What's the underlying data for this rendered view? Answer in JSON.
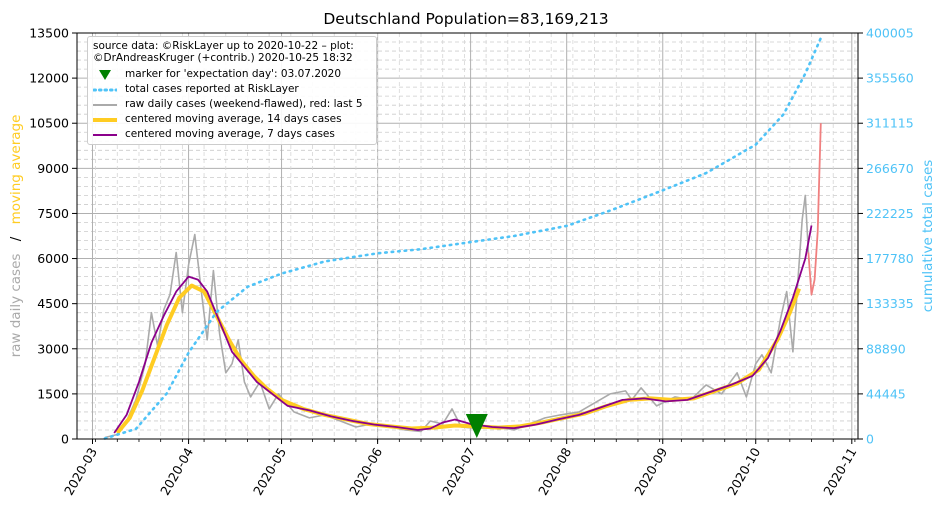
{
  "chart_data": {
    "type": "line",
    "title": "Deutschland Population=83,169,213",
    "ylabel_left_parts": [
      "raw daily cases",
      "/",
      "moving average"
    ],
    "ylabel_right": "cumulative total cases",
    "x_ticks": [
      "2020-03",
      "2020-04",
      "2020-05",
      "2020-06",
      "2020-07",
      "2020-08",
      "2020-09",
      "2020-10",
      "2020-11"
    ],
    "y_left_ticks": [
      "0",
      "1500",
      "3000",
      "4500",
      "6000",
      "7500",
      "9000",
      "10500",
      "12000",
      "13500"
    ],
    "y_right_ticks": [
      "0",
      "44445",
      "88890",
      "133335",
      "177780",
      "222225",
      "266670",
      "311115",
      "355560",
      "400005"
    ],
    "ylim_left": [
      0,
      13500
    ],
    "ylim_right": [
      0,
      400005
    ],
    "xlim": [
      "2020-02-25",
      "2020-11-03"
    ],
    "grid": true,
    "legend_position": "top-left",
    "source_text": [
      "source data: ©RiskLayer up to 2020-10-22 – plot:",
      "©DrAndreasKruger (+contrib.) 2020-10-25 18:32"
    ],
    "legend": [
      {
        "label": "marker for 'expectation day': 03.07.2020",
        "kind": "marker",
        "color": "#008000"
      },
      {
        "label": "total cases reported at RiskLayer",
        "kind": "dotted",
        "color": "#4fc3f7"
      },
      {
        "label": "raw daily cases (weekend-flawed), red: last 5",
        "kind": "line",
        "color": "#aaaaaa"
      },
      {
        "label": "centered moving average, 14 days cases",
        "kind": "thick",
        "color": "#ffcc22"
      },
      {
        "label": "centered moving average, 7 days cases",
        "kind": "line",
        "color": "#8b008b"
      }
    ],
    "colors": {
      "left_axis_raw": "#aaaaaa",
      "left_axis_ma": "#ffcc22",
      "right_axis": "#4fc3f7",
      "red_last": "#f08080"
    },
    "expectation_marker": {
      "date": "2020-07-03",
      "value": 400
    },
    "series": [
      {
        "name": "raw daily cases (weekend-flawed), red: last 5",
        "axis": "left",
        "color": "#aaaaaa",
        "points": [
          [
            "2020-03-05",
            50
          ],
          [
            "2020-03-09",
            150
          ],
          [
            "2020-03-12",
            600
          ],
          [
            "2020-03-15",
            1300
          ],
          [
            "2020-03-18",
            2500
          ],
          [
            "2020-03-20",
            4200
          ],
          [
            "2020-03-22",
            3100
          ],
          [
            "2020-03-24",
            4300
          ],
          [
            "2020-03-26",
            4800
          ],
          [
            "2020-03-28",
            6200
          ],
          [
            "2020-03-30",
            4200
          ],
          [
            "2020-04-01",
            5800
          ],
          [
            "2020-04-03",
            6800
          ],
          [
            "2020-04-05",
            5000
          ],
          [
            "2020-04-07",
            3300
          ],
          [
            "2020-04-09",
            5600
          ],
          [
            "2020-04-11",
            3500
          ],
          [
            "2020-04-13",
            2200
          ],
          [
            "2020-04-15",
            2500
          ],
          [
            "2020-04-17",
            3300
          ],
          [
            "2020-04-19",
            1900
          ],
          [
            "2020-04-21",
            1400
          ],
          [
            "2020-04-24",
            1900
          ],
          [
            "2020-04-27",
            1000
          ],
          [
            "2020-04-30",
            1500
          ],
          [
            "2020-05-05",
            900
          ],
          [
            "2020-05-10",
            700
          ],
          [
            "2020-05-15",
            800
          ],
          [
            "2020-05-20",
            600
          ],
          [
            "2020-05-25",
            400
          ],
          [
            "2020-05-30",
            500
          ],
          [
            "2020-06-05",
            400
          ],
          [
            "2020-06-10",
            300
          ],
          [
            "2020-06-15",
            250
          ],
          [
            "2020-06-18",
            600
          ],
          [
            "2020-06-22",
            500
          ],
          [
            "2020-06-25",
            1000
          ],
          [
            "2020-06-28",
            400
          ],
          [
            "2020-07-03",
            350
          ],
          [
            "2020-07-10",
            400
          ],
          [
            "2020-07-15",
            300
          ],
          [
            "2020-07-20",
            500
          ],
          [
            "2020-07-25",
            700
          ],
          [
            "2020-07-30",
            800
          ],
          [
            "2020-08-05",
            900
          ],
          [
            "2020-08-10",
            1200
          ],
          [
            "2020-08-15",
            1500
          ],
          [
            "2020-08-20",
            1600
          ],
          [
            "2020-08-22",
            1300
          ],
          [
            "2020-08-25",
            1700
          ],
          [
            "2020-08-30",
            1100
          ],
          [
            "2020-09-05",
            1400
          ],
          [
            "2020-09-10",
            1300
          ],
          [
            "2020-09-15",
            1800
          ],
          [
            "2020-09-20",
            1500
          ],
          [
            "2020-09-25",
            2200
          ],
          [
            "2020-09-28",
            1400
          ],
          [
            "2020-10-01",
            2500
          ],
          [
            "2020-10-03",
            2800
          ],
          [
            "2020-10-06",
            2200
          ],
          [
            "2020-10-09",
            4000
          ],
          [
            "2020-10-11",
            4900
          ],
          [
            "2020-10-13",
            2900
          ],
          [
            "2020-10-16",
            7300
          ],
          [
            "2020-10-17",
            8100
          ],
          [
            "2020-10-18",
            6200
          ]
        ]
      },
      {
        "name": "red: last 5",
        "axis": "left",
        "color": "#f08080",
        "points": [
          [
            "2020-10-18",
            6200
          ],
          [
            "2020-10-19",
            4800
          ],
          [
            "2020-10-20",
            5300
          ],
          [
            "2020-10-21",
            6900
          ],
          [
            "2020-10-22",
            10500
          ]
        ]
      },
      {
        "name": "centered moving average, 14 days cases",
        "axis": "left",
        "color": "#ffcc22",
        "points": [
          [
            "2020-03-09",
            200
          ],
          [
            "2020-03-13",
            700
          ],
          [
            "2020-03-17",
            1600
          ],
          [
            "2020-03-21",
            2700
          ],
          [
            "2020-03-25",
            3800
          ],
          [
            "2020-03-29",
            4700
          ],
          [
            "2020-04-02",
            5100
          ],
          [
            "2020-04-06",
            4900
          ],
          [
            "2020-04-10",
            4100
          ],
          [
            "2020-04-14",
            3300
          ],
          [
            "2020-04-18",
            2600
          ],
          [
            "2020-04-22",
            2100
          ],
          [
            "2020-04-26",
            1700
          ],
          [
            "2020-05-01",
            1300
          ],
          [
            "2020-05-08",
            1000
          ],
          [
            "2020-05-15",
            800
          ],
          [
            "2020-05-22",
            650
          ],
          [
            "2020-05-29",
            500
          ],
          [
            "2020-06-05",
            420
          ],
          [
            "2020-06-12",
            350
          ],
          [
            "2020-06-19",
            380
          ],
          [
            "2020-06-26",
            450
          ],
          [
            "2020-07-03",
            420
          ],
          [
            "2020-07-10",
            380
          ],
          [
            "2020-07-17",
            420
          ],
          [
            "2020-07-24",
            550
          ],
          [
            "2020-07-31",
            700
          ],
          [
            "2020-08-07",
            850
          ],
          [
            "2020-08-14",
            1100
          ],
          [
            "2020-08-21",
            1300
          ],
          [
            "2020-08-28",
            1350
          ],
          [
            "2020-09-04",
            1300
          ],
          [
            "2020-09-11",
            1350
          ],
          [
            "2020-09-18",
            1600
          ],
          [
            "2020-09-25",
            1850
          ],
          [
            "2020-10-02",
            2300
          ],
          [
            "2020-10-08",
            3300
          ],
          [
            "2020-10-12",
            4200
          ],
          [
            "2020-10-15",
            5000
          ]
        ]
      },
      {
        "name": "centered moving average, 7 days cases",
        "axis": "left",
        "color": "#8b008b",
        "points": [
          [
            "2020-03-08",
            200
          ],
          [
            "2020-03-12",
            800
          ],
          [
            "2020-03-16",
            1900
          ],
          [
            "2020-03-20",
            3200
          ],
          [
            "2020-03-24",
            4100
          ],
          [
            "2020-03-28",
            4900
          ],
          [
            "2020-04-01",
            5400
          ],
          [
            "2020-04-04",
            5300
          ],
          [
            "2020-04-07",
            4900
          ],
          [
            "2020-04-11",
            3900
          ],
          [
            "2020-04-15",
            2900
          ],
          [
            "2020-04-19",
            2400
          ],
          [
            "2020-04-23",
            1900
          ],
          [
            "2020-04-28",
            1500
          ],
          [
            "2020-05-03",
            1100
          ],
          [
            "2020-05-10",
            950
          ],
          [
            "2020-05-17",
            750
          ],
          [
            "2020-05-24",
            600
          ],
          [
            "2020-05-31",
            480
          ],
          [
            "2020-06-07",
            400
          ],
          [
            "2020-06-14",
            300
          ],
          [
            "2020-06-18",
            350
          ],
          [
            "2020-06-22",
            550
          ],
          [
            "2020-06-26",
            650
          ],
          [
            "2020-07-01",
            500
          ],
          [
            "2020-07-08",
            400
          ],
          [
            "2020-07-15",
            360
          ],
          [
            "2020-07-22",
            480
          ],
          [
            "2020-07-29",
            650
          ],
          [
            "2020-08-05",
            800
          ],
          [
            "2020-08-12",
            1050
          ],
          [
            "2020-08-19",
            1300
          ],
          [
            "2020-08-26",
            1350
          ],
          [
            "2020-09-02",
            1250
          ],
          [
            "2020-09-09",
            1300
          ],
          [
            "2020-09-16",
            1550
          ],
          [
            "2020-09-23",
            1800
          ],
          [
            "2020-09-30",
            2100
          ],
          [
            "2020-10-05",
            2700
          ],
          [
            "2020-10-09",
            3600
          ],
          [
            "2020-10-13",
            4700
          ],
          [
            "2020-10-17",
            6000
          ],
          [
            "2020-10-19",
            7100
          ]
        ]
      },
      {
        "name": "total cases reported at RiskLayer",
        "axis": "right",
        "color": "#4fc3f7",
        "points": [
          [
            "2020-03-05",
            500
          ],
          [
            "2020-03-15",
            10000
          ],
          [
            "2020-03-25",
            45000
          ],
          [
            "2020-04-01",
            85000
          ],
          [
            "2020-04-10",
            125000
          ],
          [
            "2020-04-20",
            150000
          ],
          [
            "2020-05-01",
            163000
          ],
          [
            "2020-05-15",
            175000
          ],
          [
            "2020-06-01",
            183000
          ],
          [
            "2020-06-15",
            187000
          ],
          [
            "2020-07-01",
            194000
          ],
          [
            "2020-07-15",
            200000
          ],
          [
            "2020-08-01",
            210000
          ],
          [
            "2020-08-15",
            225000
          ],
          [
            "2020-09-01",
            245000
          ],
          [
            "2020-09-15",
            262000
          ],
          [
            "2020-10-01",
            290000
          ],
          [
            "2020-10-10",
            320000
          ],
          [
            "2020-10-17",
            360000
          ],
          [
            "2020-10-22",
            395000
          ]
        ]
      }
    ]
  }
}
